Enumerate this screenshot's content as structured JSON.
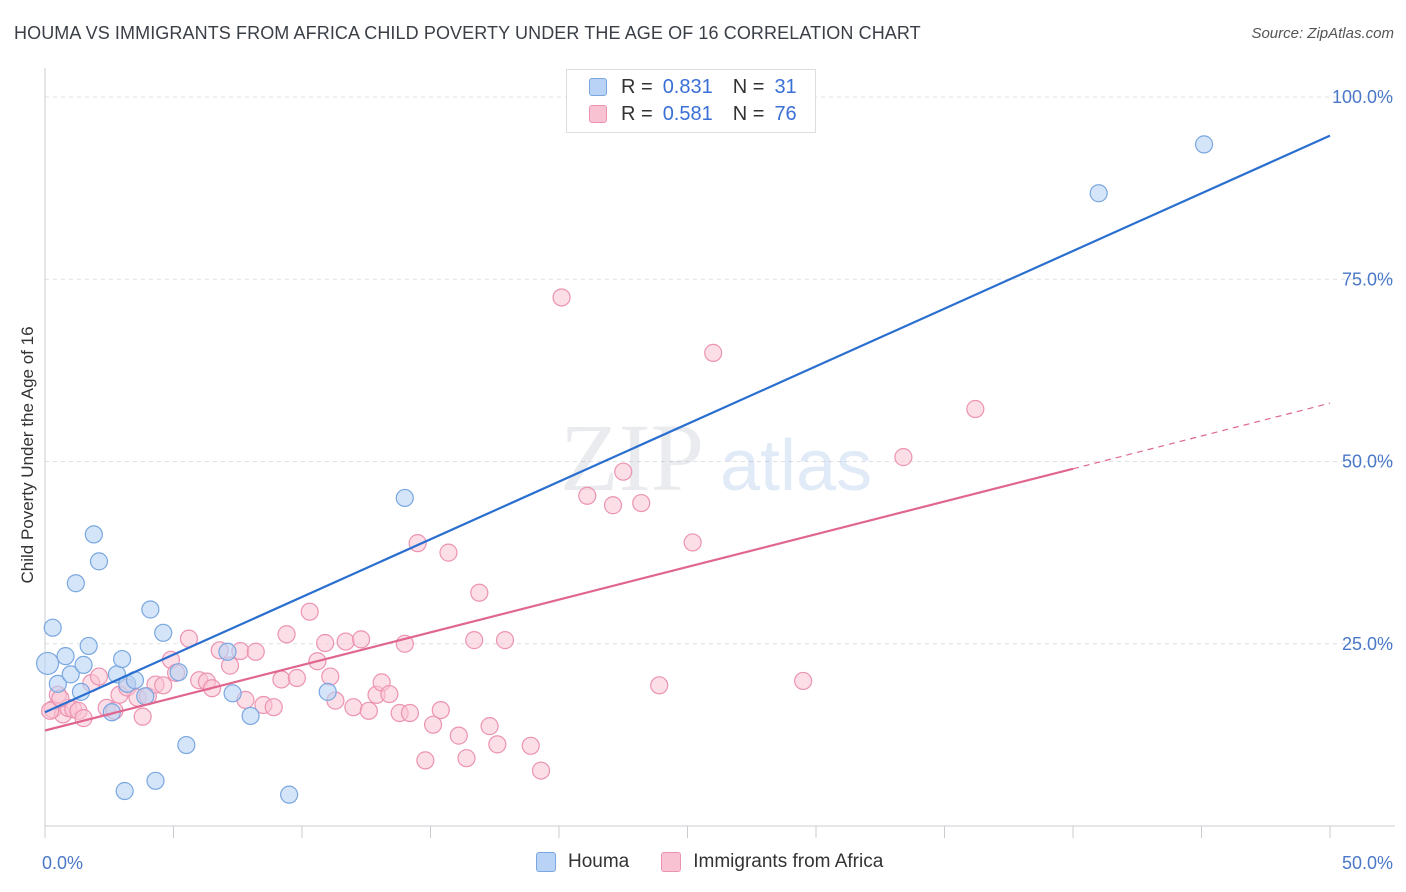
{
  "header": {
    "title": "HOUMA VS IMMIGRANTS FROM AFRICA CHILD POVERTY UNDER THE AGE OF 16 CORRELATION CHART",
    "source": "Source: ZipAtlas.com"
  },
  "watermark": {
    "zip": "ZIP",
    "atlas": "atlas"
  },
  "colors": {
    "houma_fill": "#b8d3f5",
    "houma_stroke": "#7aa7e0",
    "houma_line": "#2a6fd0",
    "africa_fill": "#f9c2d3",
    "africa_stroke": "#ec93b1",
    "africa_line": "#e06690",
    "tick_label": "#4a78c8",
    "grid": "#dde0e6"
  },
  "legend": {
    "rows": [
      {
        "r_label": "R =",
        "r_value": "0.831",
        "n_label": "N =",
        "n_value": "31"
      },
      {
        "r_label": "R =",
        "r_value": "0.581",
        "n_label": "N =",
        "n_value": "76"
      }
    ],
    "bottom": [
      "Houma",
      "Immigrants from Africa"
    ]
  },
  "chart_data": {
    "type": "scatter",
    "title": "HOUMA VS IMMIGRANTS FROM AFRICA CHILD POVERTY UNDER THE AGE OF 16 CORRELATION CHART",
    "xlabel": "",
    "ylabel": "Child Poverty Under the Age of 16",
    "xlim": [
      0,
      50
    ],
    "ylim": [
      0,
      100
    ],
    "x_tick_labels": [
      {
        "value": 0,
        "label": "0.0%"
      },
      {
        "value": 50,
        "label": "50.0%"
      }
    ],
    "y_tick_labels": [
      {
        "value": 25,
        "label": "25.0%"
      },
      {
        "value": 50,
        "label": "50.0%"
      },
      {
        "value": 75,
        "label": "75.0%"
      },
      {
        "value": 100,
        "label": "100.0%"
      }
    ],
    "grid": true,
    "legend_position": "top-center",
    "series": [
      {
        "name": "Houma",
        "r": 0.831,
        "n": 31,
        "trend": {
          "x": [
            0,
            50
          ],
          "y": [
            15.6,
            94.7
          ]
        },
        "points": [
          [
            0.1,
            22.3
          ],
          [
            0.3,
            27.2
          ],
          [
            0.5,
            19.5
          ],
          [
            0.8,
            23.3
          ],
          [
            1.0,
            20.8
          ],
          [
            1.2,
            33.3
          ],
          [
            1.4,
            18.4
          ],
          [
            1.5,
            22.1
          ],
          [
            1.7,
            24.7
          ],
          [
            1.9,
            40.0
          ],
          [
            2.1,
            36.3
          ],
          [
            2.6,
            15.6
          ],
          [
            2.8,
            20.8
          ],
          [
            3.0,
            22.9
          ],
          [
            3.2,
            19.5
          ],
          [
            3.5,
            20.0
          ],
          [
            3.9,
            17.8
          ],
          [
            4.1,
            29.7
          ],
          [
            4.6,
            26.5
          ],
          [
            5.2,
            21.1
          ],
          [
            5.5,
            11.1
          ],
          [
            7.1,
            23.9
          ],
          [
            7.3,
            18.2
          ],
          [
            8.0,
            15.1
          ],
          [
            9.5,
            4.3
          ],
          [
            11.0,
            18.4
          ],
          [
            14.0,
            45.0
          ],
          [
            3.1,
            4.8
          ],
          [
            4.3,
            6.2
          ],
          [
            41.0,
            86.8
          ],
          [
            45.1,
            93.5
          ]
        ]
      },
      {
        "name": "Immigrants from Africa",
        "r": 0.581,
        "n": 76,
        "trend": {
          "x": [
            0,
            40
          ],
          "y": [
            13.1,
            49.0
          ]
        },
        "trend_dashed": {
          "x": [
            40,
            50
          ],
          "y": [
            49.0,
            58.0
          ]
        },
        "points": [
          [
            0.3,
            16.0
          ],
          [
            0.5,
            18.0
          ],
          [
            0.7,
            15.3
          ],
          [
            0.9,
            16.2
          ],
          [
            1.1,
            16.0
          ],
          [
            1.3,
            15.8
          ],
          [
            1.5,
            14.8
          ],
          [
            1.8,
            19.6
          ],
          [
            2.1,
            20.5
          ],
          [
            2.4,
            16.2
          ],
          [
            2.7,
            15.8
          ],
          [
            2.9,
            18.0
          ],
          [
            3.2,
            19.0
          ],
          [
            3.6,
            17.6
          ],
          [
            3.8,
            15.0
          ],
          [
            4.0,
            17.8
          ],
          [
            4.3,
            19.4
          ],
          [
            4.6,
            19.3
          ],
          [
            4.9,
            22.8
          ],
          [
            5.1,
            21.0
          ],
          [
            5.6,
            25.7
          ],
          [
            6.0,
            20.0
          ],
          [
            6.3,
            19.8
          ],
          [
            6.5,
            18.9
          ],
          [
            6.8,
            24.1
          ],
          [
            7.2,
            22.0
          ],
          [
            7.6,
            24.0
          ],
          [
            7.8,
            17.3
          ],
          [
            8.2,
            23.9
          ],
          [
            8.5,
            16.6
          ],
          [
            8.9,
            16.3
          ],
          [
            9.2,
            20.1
          ],
          [
            9.4,
            26.3
          ],
          [
            9.8,
            20.3
          ],
          [
            10.3,
            29.4
          ],
          [
            10.6,
            22.6
          ],
          [
            10.9,
            25.1
          ],
          [
            11.1,
            20.5
          ],
          [
            11.3,
            17.2
          ],
          [
            11.7,
            25.3
          ],
          [
            12.0,
            16.3
          ],
          [
            12.3,
            25.6
          ],
          [
            12.6,
            15.8
          ],
          [
            12.9,
            18.0
          ],
          [
            13.1,
            19.7
          ],
          [
            13.4,
            18.1
          ],
          [
            13.8,
            15.5
          ],
          [
            14.0,
            25.0
          ],
          [
            14.2,
            15.5
          ],
          [
            14.5,
            38.8
          ],
          [
            14.8,
            9.0
          ],
          [
            15.1,
            13.9
          ],
          [
            15.4,
            15.9
          ],
          [
            15.7,
            37.5
          ],
          [
            16.1,
            12.4
          ],
          [
            16.4,
            9.3
          ],
          [
            16.7,
            25.5
          ],
          [
            16.9,
            32.0
          ],
          [
            17.3,
            13.7
          ],
          [
            17.6,
            11.2
          ],
          [
            17.9,
            25.5
          ],
          [
            18.9,
            11.0
          ],
          [
            19.3,
            7.6
          ],
          [
            20.1,
            72.5
          ],
          [
            21.1,
            45.3
          ],
          [
            22.1,
            44.0
          ],
          [
            22.5,
            48.6
          ],
          [
            23.2,
            44.3
          ],
          [
            23.9,
            19.3
          ],
          [
            25.2,
            38.9
          ],
          [
            26.0,
            64.9
          ],
          [
            29.5,
            19.9
          ],
          [
            33.4,
            50.6
          ],
          [
            36.2,
            57.2
          ],
          [
            0.2,
            15.8
          ],
          [
            0.6,
            17.5
          ]
        ]
      }
    ]
  }
}
